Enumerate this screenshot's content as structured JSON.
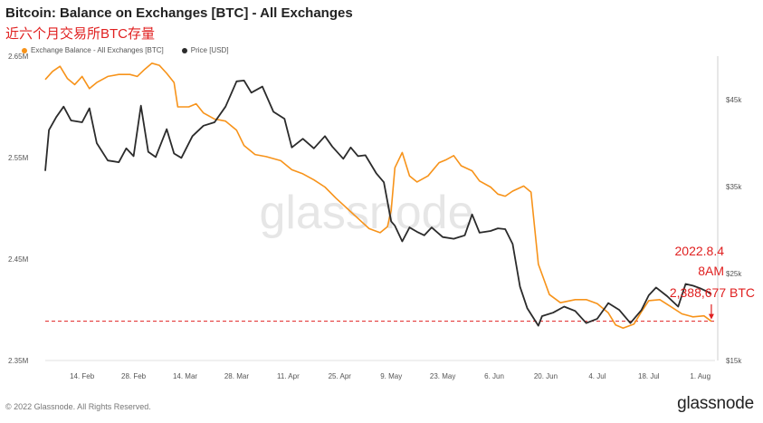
{
  "title": "Bitcoin: Balance on Exchanges [BTC] - All Exchanges",
  "annotation_top": "近六个月交易所BTC存量",
  "legend": {
    "series1": "Exchange Balance - All Exchanges [BTC]",
    "series2": "Price [USD]"
  },
  "colors": {
    "balance": "#f7931a",
    "price": "#2b2b2b",
    "annotation": "#e02020",
    "watermark": "#e6e6e6"
  },
  "watermark": "glassnode",
  "callout": {
    "date": "2022.8.4",
    "time": "8AM",
    "value": "2,388,677 BTC"
  },
  "footer": {
    "copyright": "© 2022 Glassnode. All Rights Reserved.",
    "brand": "glassnode"
  },
  "chart_data": {
    "type": "line",
    "title": "Bitcoin: Balance on Exchanges [BTC] - All Exchanges",
    "x_range": [
      "2022-02-04",
      "2022-08-05"
    ],
    "x_ticks": [
      "14. Feb",
      "28. Feb",
      "14. Mar",
      "28. Mar",
      "11. Apr",
      "25. Apr",
      "9. May",
      "23. May",
      "6. Jun",
      "20. Jun",
      "4. Jul",
      "18. Jul",
      "1. Aug"
    ],
    "y_left": {
      "range": [
        2350000,
        2650000
      ],
      "ticks": [
        "2.35M",
        "2.45M",
        "2.55M",
        "2.65M"
      ]
    },
    "y_right": {
      "range": [
        15000,
        50000
      ],
      "ticks": [
        "$15k",
        "$25k",
        "$35k",
        "$45k"
      ]
    },
    "reference_line": {
      "value": 2388677,
      "style": "dashed",
      "color": "#e02020"
    },
    "series": [
      {
        "name": "Exchange Balance - All Exchanges [BTC]",
        "axis": "left",
        "color": "#f7931a",
        "points": [
          [
            "2022-02-04",
            2627000
          ],
          [
            "2022-02-06",
            2635000
          ],
          [
            "2022-02-08",
            2640000
          ],
          [
            "2022-02-10",
            2628000
          ],
          [
            "2022-02-12",
            2622000
          ],
          [
            "2022-02-14",
            2630000
          ],
          [
            "2022-02-16",
            2618000
          ],
          [
            "2022-02-18",
            2624000
          ],
          [
            "2022-02-21",
            2630000
          ],
          [
            "2022-02-24",
            2632000
          ],
          [
            "2022-02-27",
            2632000
          ],
          [
            "2022-03-01",
            2630000
          ],
          [
            "2022-03-03",
            2637000
          ],
          [
            "2022-03-05",
            2643000
          ],
          [
            "2022-03-07",
            2641000
          ],
          [
            "2022-03-09",
            2633000
          ],
          [
            "2022-03-11",
            2624000
          ],
          [
            "2022-03-12",
            2600000
          ],
          [
            "2022-03-15",
            2600000
          ],
          [
            "2022-03-17",
            2603000
          ],
          [
            "2022-03-19",
            2594000
          ],
          [
            "2022-03-22",
            2588000
          ],
          [
            "2022-03-25",
            2586000
          ],
          [
            "2022-03-28",
            2577000
          ],
          [
            "2022-03-30",
            2562000
          ],
          [
            "2022-04-02",
            2553000
          ],
          [
            "2022-04-05",
            2551000
          ],
          [
            "2022-04-09",
            2547000
          ],
          [
            "2022-04-12",
            2538000
          ],
          [
            "2022-04-15",
            2534000
          ],
          [
            "2022-04-18",
            2528000
          ],
          [
            "2022-04-21",
            2521000
          ],
          [
            "2022-04-24",
            2510000
          ],
          [
            "2022-04-27",
            2500000
          ],
          [
            "2022-04-30",
            2490000
          ],
          [
            "2022-05-03",
            2480000
          ],
          [
            "2022-05-06",
            2476000
          ],
          [
            "2022-05-08",
            2482000
          ],
          [
            "2022-05-09",
            2498000
          ],
          [
            "2022-05-10",
            2540000
          ],
          [
            "2022-05-12",
            2555000
          ],
          [
            "2022-05-14",
            2532000
          ],
          [
            "2022-05-16",
            2526000
          ],
          [
            "2022-05-19",
            2532000
          ],
          [
            "2022-05-22",
            2545000
          ],
          [
            "2022-05-24",
            2548000
          ],
          [
            "2022-05-26",
            2552000
          ],
          [
            "2022-05-28",
            2542000
          ],
          [
            "2022-05-31",
            2537000
          ],
          [
            "2022-06-02",
            2527000
          ],
          [
            "2022-06-05",
            2521000
          ],
          [
            "2022-06-07",
            2514000
          ],
          [
            "2022-06-09",
            2512000
          ],
          [
            "2022-06-11",
            2517000
          ],
          [
            "2022-06-14",
            2522000
          ],
          [
            "2022-06-16",
            2516000
          ],
          [
            "2022-06-17",
            2480000
          ],
          [
            "2022-06-18",
            2445000
          ],
          [
            "2022-06-21",
            2415000
          ],
          [
            "2022-06-24",
            2407000
          ],
          [
            "2022-06-28",
            2410000
          ],
          [
            "2022-07-01",
            2410000
          ],
          [
            "2022-07-04",
            2406000
          ],
          [
            "2022-07-07",
            2397000
          ],
          [
            "2022-07-09",
            2385000
          ],
          [
            "2022-07-11",
            2382000
          ],
          [
            "2022-07-14",
            2386000
          ],
          [
            "2022-07-16",
            2398000
          ],
          [
            "2022-07-18",
            2409000
          ],
          [
            "2022-07-21",
            2410000
          ],
          [
            "2022-07-24",
            2403000
          ],
          [
            "2022-07-27",
            2396000
          ],
          [
            "2022-07-30",
            2393000
          ],
          [
            "2022-08-02",
            2394000
          ],
          [
            "2022-08-04",
            2388677
          ]
        ]
      },
      {
        "name": "Price [USD]",
        "axis": "right",
        "color": "#2b2b2b",
        "points": [
          [
            "2022-02-04",
            36800
          ],
          [
            "2022-02-05",
            41500
          ],
          [
            "2022-02-07",
            43000
          ],
          [
            "2022-02-09",
            44200
          ],
          [
            "2022-02-11",
            42600
          ],
          [
            "2022-02-14",
            42400
          ],
          [
            "2022-02-16",
            44000
          ],
          [
            "2022-02-18",
            40000
          ],
          [
            "2022-02-21",
            38000
          ],
          [
            "2022-02-24",
            37800
          ],
          [
            "2022-02-26",
            39400
          ],
          [
            "2022-02-28",
            38500
          ],
          [
            "2022-03-02",
            44300
          ],
          [
            "2022-03-04",
            39000
          ],
          [
            "2022-03-06",
            38400
          ],
          [
            "2022-03-09",
            41600
          ],
          [
            "2022-03-11",
            38800
          ],
          [
            "2022-03-13",
            38300
          ],
          [
            "2022-03-16",
            40800
          ],
          [
            "2022-03-19",
            42000
          ],
          [
            "2022-03-22",
            42400
          ],
          [
            "2022-03-25",
            44200
          ],
          [
            "2022-03-28",
            47100
          ],
          [
            "2022-03-30",
            47200
          ],
          [
            "2022-04-01",
            45800
          ],
          [
            "2022-04-04",
            46500
          ],
          [
            "2022-04-07",
            43600
          ],
          [
            "2022-04-10",
            42800
          ],
          [
            "2022-04-12",
            39500
          ],
          [
            "2022-04-15",
            40500
          ],
          [
            "2022-04-18",
            39400
          ],
          [
            "2022-04-21",
            40800
          ],
          [
            "2022-04-23",
            39600
          ],
          [
            "2022-04-26",
            38200
          ],
          [
            "2022-04-28",
            39500
          ],
          [
            "2022-04-30",
            38500
          ],
          [
            "2022-05-02",
            38600
          ],
          [
            "2022-05-05",
            36500
          ],
          [
            "2022-05-07",
            35500
          ],
          [
            "2022-05-09",
            31000
          ],
          [
            "2022-05-10",
            30500
          ],
          [
            "2022-05-12",
            28700
          ],
          [
            "2022-05-14",
            30300
          ],
          [
            "2022-05-16",
            29800
          ],
          [
            "2022-05-18",
            29400
          ],
          [
            "2022-05-20",
            30300
          ],
          [
            "2022-05-23",
            29200
          ],
          [
            "2022-05-26",
            29000
          ],
          [
            "2022-05-29",
            29400
          ],
          [
            "2022-05-31",
            31800
          ],
          [
            "2022-06-02",
            29700
          ],
          [
            "2022-06-05",
            29900
          ],
          [
            "2022-06-07",
            30200
          ],
          [
            "2022-06-09",
            30100
          ],
          [
            "2022-06-11",
            28400
          ],
          [
            "2022-06-13",
            23500
          ],
          [
            "2022-06-15",
            21000
          ],
          [
            "2022-06-18",
            19000
          ],
          [
            "2022-06-19",
            20100
          ],
          [
            "2022-06-22",
            20500
          ],
          [
            "2022-06-25",
            21200
          ],
          [
            "2022-06-28",
            20700
          ],
          [
            "2022-07-01",
            19300
          ],
          [
            "2022-07-04",
            19800
          ],
          [
            "2022-07-07",
            21600
          ],
          [
            "2022-07-10",
            20800
          ],
          [
            "2022-07-13",
            19300
          ],
          [
            "2022-07-16",
            20800
          ],
          [
            "2022-07-18",
            22500
          ],
          [
            "2022-07-20",
            23400
          ],
          [
            "2022-07-23",
            22400
          ],
          [
            "2022-07-26",
            21200
          ],
          [
            "2022-07-28",
            23800
          ],
          [
            "2022-07-30",
            23600
          ],
          [
            "2022-08-01",
            23300
          ],
          [
            "2022-08-03",
            22900
          ],
          [
            "2022-08-04",
            22600
          ]
        ]
      }
    ]
  }
}
